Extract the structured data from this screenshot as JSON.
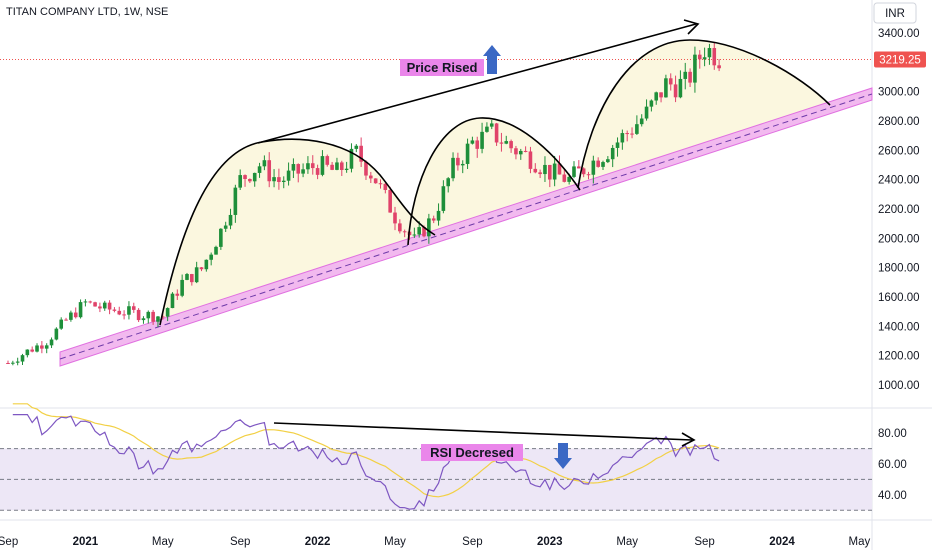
{
  "header": {
    "title": "TITAN COMPANY LTD, 1W, NSE",
    "currency": "INR"
  },
  "colors": {
    "up": "#26a69a",
    "down": "#ef5350",
    "up_body": "#1e8f3a",
    "down_body": "#e0436a",
    "channel": "#e88ce8",
    "cup_fill": "#fbf7df",
    "rsi_line": "#7e57c2",
    "rsi_ma": "#f2d045",
    "rsi_band": "#ede7f6",
    "label_bg": "#ea86ea",
    "arrow_blue": "#3b68c4"
  },
  "chart_data": [
    {
      "type": "candlestick",
      "name": "price",
      "ylim": [
        880,
        3520
      ],
      "y_ticks": [
        1000,
        1200,
        1400,
        1600,
        1800,
        2000,
        2200,
        2400,
        2600,
        2800,
        3000,
        3200,
        3400
      ],
      "y_tick_labels": [
        "1000.00",
        "1200.00",
        "1400.00",
        "1600.00",
        "1800.00",
        "2000.00",
        "2200.00",
        "2400.00",
        "2600.00",
        "2800.00",
        "3000.00",
        "3200.00",
        "3400.00"
      ],
      "last_price": 3219.25,
      "last_price_label": "3219.25",
      "series": [
        {
          "date": "2020-09",
          "close": 1150
        },
        {
          "date": "2020-10",
          "close": 1230
        },
        {
          "date": "2020-11",
          "close": 1300
        },
        {
          "date": "2020-12",
          "close": 1440
        },
        {
          "date": "2021-01",
          "close": 1560
        },
        {
          "date": "2021-02",
          "close": 1520
        },
        {
          "date": "2021-03",
          "close": 1500
        },
        {
          "date": "2021-04",
          "close": 1480
        },
        {
          "date": "2021-05",
          "close": 1470
        },
        {
          "date": "2021-06",
          "close": 1700
        },
        {
          "date": "2021-07",
          "close": 1790
        },
        {
          "date": "2021-08",
          "close": 2050
        },
        {
          "date": "2021-09",
          "close": 2400
        },
        {
          "date": "2021-10",
          "close": 2500
        },
        {
          "date": "2021-11",
          "close": 2390
        },
        {
          "date": "2021-12",
          "close": 2450
        },
        {
          "date": "2022-01",
          "close": 2500
        },
        {
          "date": "2022-02",
          "close": 2450
        },
        {
          "date": "2022-03",
          "close": 2580
        },
        {
          "date": "2022-04",
          "close": 2400
        },
        {
          "date": "2022-05",
          "close": 2150
        },
        {
          "date": "2022-06",
          "close": 1980
        },
        {
          "date": "2022-07",
          "close": 2150
        },
        {
          "date": "2022-08",
          "close": 2480
        },
        {
          "date": "2022-09",
          "close": 2650
        },
        {
          "date": "2022-10",
          "close": 2720
        },
        {
          "date": "2022-11",
          "close": 2620
        },
        {
          "date": "2022-12",
          "close": 2550
        },
        {
          "date": "2023-01",
          "close": 2450
        },
        {
          "date": "2023-02",
          "close": 2400
        },
        {
          "date": "2023-03",
          "close": 2500
        },
        {
          "date": "2023-04",
          "close": 2600
        },
        {
          "date": "2023-05",
          "close": 2720
        },
        {
          "date": "2023-06",
          "close": 2850
        },
        {
          "date": "2023-07",
          "close": 3050
        },
        {
          "date": "2023-08",
          "close": 3050
        },
        {
          "date": "2023-09",
          "close": 3300
        },
        {
          "date": "2023-10",
          "close": 3219
        }
      ],
      "annotations": {
        "price_label": "Price Rised"
      }
    },
    {
      "type": "line",
      "name": "rsi",
      "ylim": [
        25,
        95
      ],
      "y_ticks": [
        40,
        60,
        80
      ],
      "y_tick_labels": [
        "40.00",
        "60.00",
        "80.00"
      ],
      "band": [
        30,
        70
      ],
      "midline": 50,
      "annotations": {
        "rsi_label": "RSI Decresed"
      }
    }
  ],
  "x_axis": {
    "labels": [
      {
        "text": "Sep",
        "date": "2020-09",
        "bold": false
      },
      {
        "text": "2021",
        "date": "2021-01",
        "bold": true
      },
      {
        "text": "May",
        "date": "2021-05",
        "bold": false
      },
      {
        "text": "Sep",
        "date": "2021-09",
        "bold": false
      },
      {
        "text": "2022",
        "date": "2022-01",
        "bold": true
      },
      {
        "text": "May",
        "date": "2022-05",
        "bold": false
      },
      {
        "text": "Sep",
        "date": "2022-09",
        "bold": false
      },
      {
        "text": "2023",
        "date": "2023-01",
        "bold": true
      },
      {
        "text": "May",
        "date": "2023-05",
        "bold": false
      },
      {
        "text": "Sep",
        "date": "2023-09",
        "bold": false
      },
      {
        "text": "2024",
        "date": "2024-01",
        "bold": true
      },
      {
        "text": "May",
        "date": "2024-05",
        "bold": false
      }
    ]
  }
}
